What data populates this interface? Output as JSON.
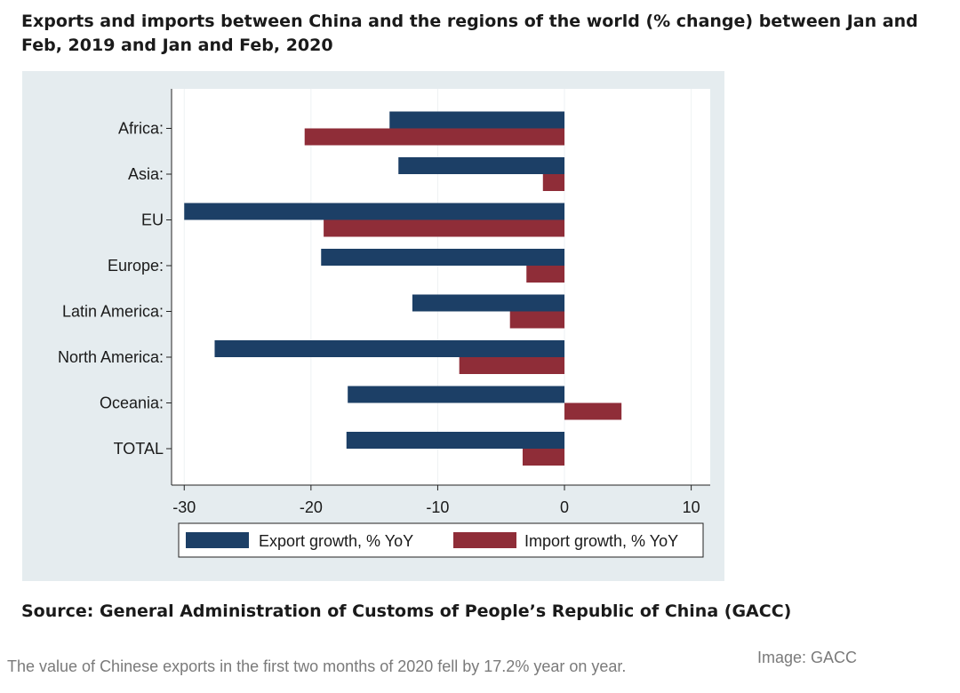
{
  "header": {
    "title": "Exports and imports between China and the regions of the world (% change) between Jan and Feb, 2019 and Jan and Feb, 2020"
  },
  "footer": {
    "source": "Source: General Administration of Customs of People’s Republic of China (GACC)",
    "caption": "The value of Chinese exports in the first two months of 2020 fell by 17.2% year on year.",
    "credit": "Image: GACC"
  },
  "colors": {
    "export": "#1c3f66",
    "import": "#8f2d38",
    "panel": "#e5ecef",
    "plot": "#ffffff"
  },
  "chart_data": {
    "type": "bar",
    "orientation": "horizontal",
    "categories": [
      "Africa:",
      "Asia:",
      "EU",
      "Europe:",
      "Latin America:",
      "North America:",
      "Oceania:",
      "TOTAL"
    ],
    "series": [
      {
        "name": "Export growth, % YoY",
        "values": [
          -13.8,
          -13.1,
          -30.0,
          -19.2,
          -12.0,
          -27.6,
          -17.1,
          -17.2
        ]
      },
      {
        "name": "Import growth, % YoY",
        "values": [
          -20.5,
          -1.7,
          -19.0,
          -3.0,
          -4.3,
          -8.3,
          4.5,
          -3.3
        ]
      }
    ],
    "xlim": [
      -31,
      11.5
    ],
    "xticks": [
      -30,
      -20,
      -10,
      0,
      10
    ],
    "grid": true,
    "legend": "bottom"
  }
}
